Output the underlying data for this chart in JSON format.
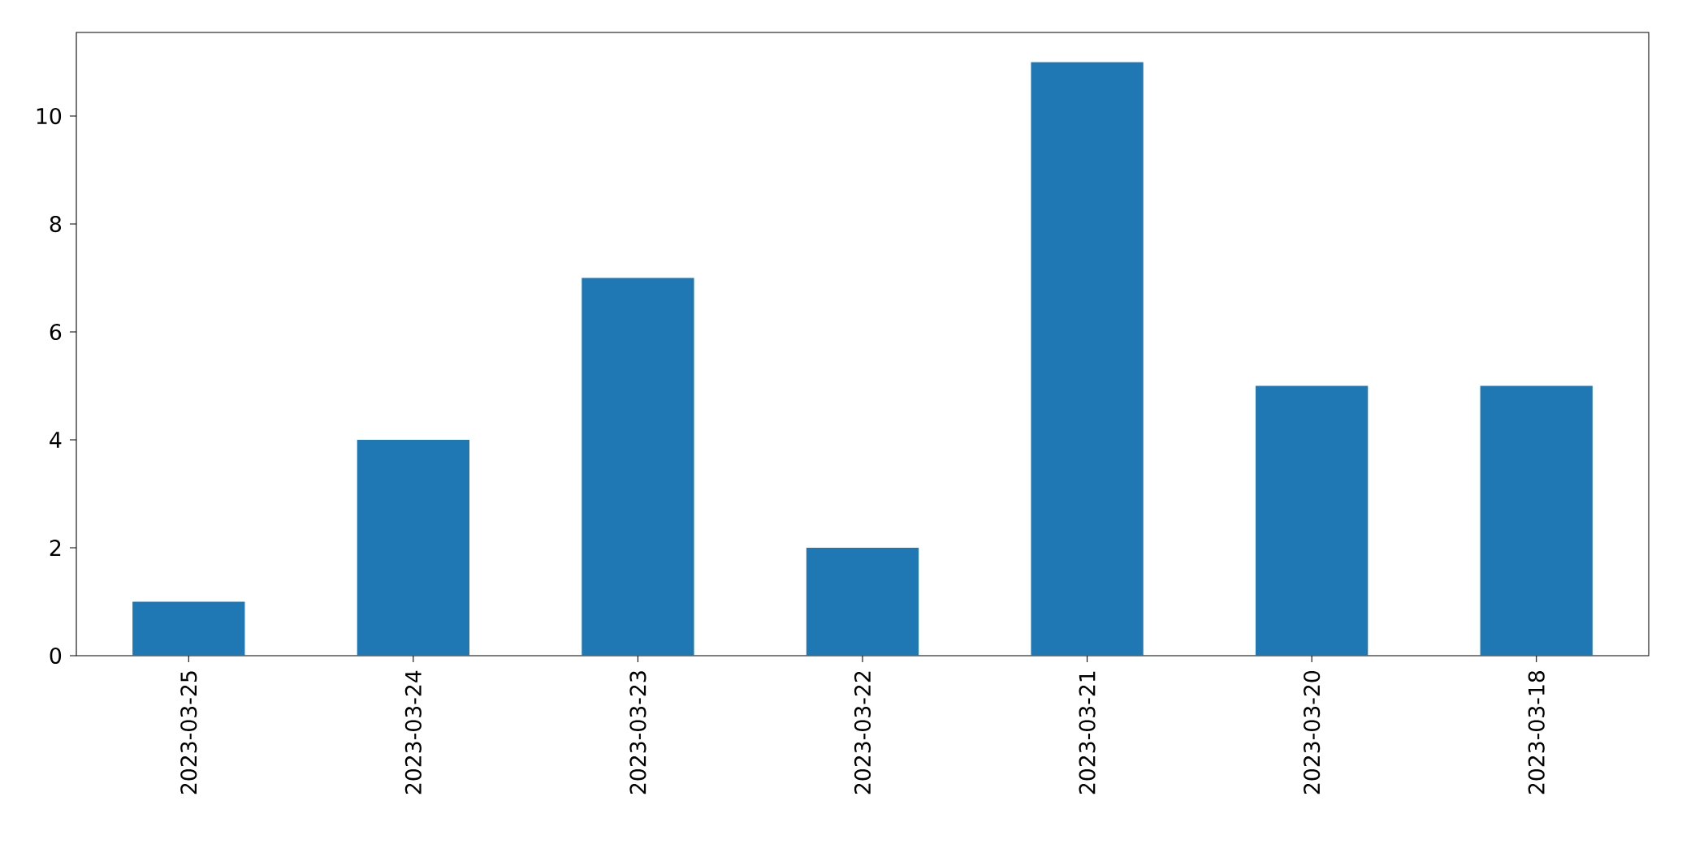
{
  "chart_data": {
    "type": "bar",
    "categories": [
      "2023-03-25",
      "2023-03-24",
      "2023-03-23",
      "2023-03-22",
      "2023-03-21",
      "2023-03-20",
      "2023-03-18"
    ],
    "values": [
      1,
      4,
      7,
      2,
      11,
      5,
      5
    ],
    "color": "#1f77b4",
    "ylim": [
      0,
      11.55
    ],
    "yticks": [
      0,
      2,
      4,
      6,
      8,
      10
    ]
  }
}
